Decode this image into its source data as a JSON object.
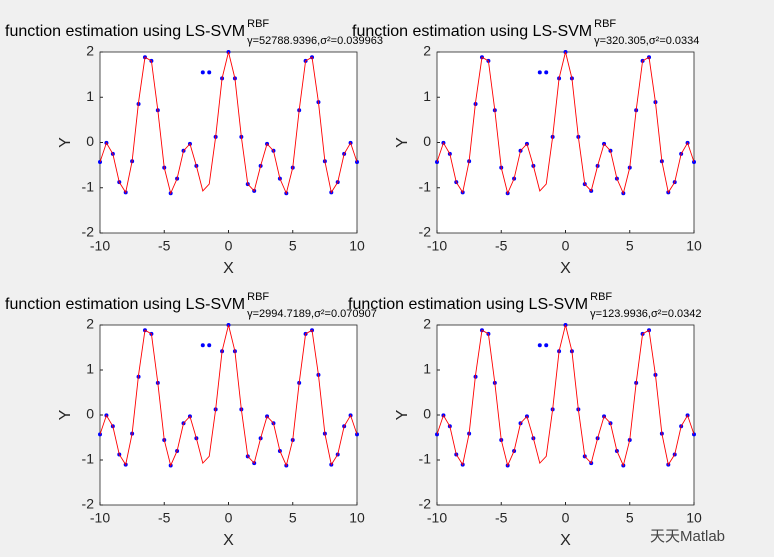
{
  "chart_data": [
    {
      "type": "scatter-line",
      "title": "function estimation using  LS-SVM",
      "title_sup": "RBF",
      "title_sub": "γ=52788.9396,σ²=0.039963",
      "xlabel": "X",
      "ylabel": "Y",
      "x": [
        -10,
        -9.5,
        -9,
        -8.5,
        -8,
        -7.5,
        -7,
        -6.5,
        -6,
        -5.5,
        -5,
        -4.5,
        -4,
        -3.5,
        -3,
        -2.5,
        -2,
        -1.5,
        -1,
        -0.5,
        0,
        0.5,
        1,
        1.5,
        2,
        2.5,
        3,
        3.5,
        4,
        4.5,
        5,
        5.5,
        6,
        6.5,
        7,
        7.5,
        8,
        8.5,
        9,
        9.5,
        10
      ],
      "series": [
        {
          "color": "#0000ff",
          "marker": "dot",
          "values": [
            -0.431,
            -0.009,
            -0.251,
            -0.877,
            -1.103,
            -0.413,
            0.85,
            1.884,
            1.804,
            0.713,
            -0.555,
            -1.122,
            -0.799,
            -0.183,
            -0.03,
            -0.517,
            1.55,
            1.55,
            0.124,
            1.418,
            2,
            1.418,
            0.124,
            -0.919,
            -1.07,
            -0.517,
            -0.03,
            -0.183,
            -0.799,
            -1.122,
            -0.555,
            0.713,
            1.804,
            1.884,
            0.891,
            -0.413,
            -1.103,
            -0.877,
            -0.251,
            -0.009,
            -0.431
          ]
        },
        {
          "color": "#ff0000",
          "marker": "line",
          "values": [
            -0.431,
            -0.009,
            -0.251,
            -0.877,
            -1.103,
            -0.413,
            0.891,
            1.884,
            1.804,
            0.713,
            -0.555,
            -1.122,
            -0.799,
            -0.183,
            -0.03,
            -0.517,
            -1.07,
            -0.919,
            0.124,
            1.418,
            2,
            1.418,
            0.124,
            -0.919,
            -1.07,
            -0.517,
            -0.03,
            -0.183,
            -0.799,
            -1.122,
            -0.555,
            0.713,
            1.804,
            1.884,
            0.891,
            -0.413,
            -1.103,
            -0.877,
            -0.251,
            -0.009,
            -0.431
          ]
        }
      ],
      "xlim": [
        -10,
        10
      ],
      "xticks": [
        -10,
        -5,
        0,
        5,
        10
      ],
      "ylim": [
        -2,
        2
      ],
      "yticks": [
        -2,
        -1,
        0,
        1,
        2
      ]
    },
    {
      "type": "scatter-line",
      "title": "function estimation using  LS-SVM",
      "title_sup": "RBF",
      "title_sub": "γ=320.305,σ²=0.0334",
      "xlabel": "X",
      "ylabel": "Y",
      "x": [
        -10,
        -9.5,
        -9,
        -8.5,
        -8,
        -7.5,
        -7,
        -6.5,
        -6,
        -5.5,
        -5,
        -4.5,
        -4,
        -3.5,
        -3,
        -2.5,
        -2,
        -1.5,
        -1,
        -0.5,
        0,
        0.5,
        1,
        1.5,
        2,
        2.5,
        3,
        3.5,
        4,
        4.5,
        5,
        5.5,
        6,
        6.5,
        7,
        7.5,
        8,
        8.5,
        9,
        9.5,
        10
      ],
      "series": [
        {
          "color": "#0000ff",
          "marker": "dot",
          "values": [
            -0.431,
            -0.009,
            -0.251,
            -0.877,
            -1.103,
            -0.413,
            0.85,
            1.884,
            1.804,
            0.713,
            -0.555,
            -1.122,
            -0.799,
            -0.183,
            -0.03,
            -0.517,
            1.55,
            1.55,
            0.124,
            1.418,
            2,
            1.418,
            0.124,
            -0.919,
            -1.07,
            -0.517,
            -0.03,
            -0.183,
            -0.799,
            -1.122,
            -0.555,
            0.713,
            1.804,
            1.884,
            0.891,
            -0.413,
            -1.103,
            -0.877,
            -0.251,
            -0.009,
            -0.431
          ]
        },
        {
          "color": "#ff0000",
          "marker": "line",
          "values": [
            -0.431,
            -0.009,
            -0.251,
            -0.877,
            -1.103,
            -0.413,
            0.891,
            1.884,
            1.804,
            0.713,
            -0.555,
            -1.122,
            -0.799,
            -0.183,
            -0.03,
            -0.517,
            -1.07,
            -0.919,
            0.124,
            1.418,
            2,
            1.418,
            0.124,
            -0.919,
            -1.07,
            -0.517,
            -0.03,
            -0.183,
            -0.799,
            -1.122,
            -0.555,
            0.713,
            1.804,
            1.884,
            0.891,
            -0.413,
            -1.103,
            -0.877,
            -0.251,
            -0.009,
            -0.431
          ]
        }
      ],
      "xlim": [
        -10,
        10
      ],
      "xticks": [
        -10,
        -5,
        0,
        5,
        10
      ],
      "ylim": [
        -2,
        2
      ],
      "yticks": [
        -2,
        -1,
        0,
        1,
        2
      ]
    },
    {
      "type": "scatter-line",
      "title": "function estimation using  LS-SVM",
      "title_sup": "RBF",
      "title_sub": "γ=2994.7189,σ²=0.070907",
      "xlabel": "X",
      "ylabel": "Y",
      "x": [
        -10,
        -9.5,
        -9,
        -8.5,
        -8,
        -7.5,
        -7,
        -6.5,
        -6,
        -5.5,
        -5,
        -4.5,
        -4,
        -3.5,
        -3,
        -2.5,
        -2,
        -1.5,
        -1,
        -0.5,
        0,
        0.5,
        1,
        1.5,
        2,
        2.5,
        3,
        3.5,
        4,
        4.5,
        5,
        5.5,
        6,
        6.5,
        7,
        7.5,
        8,
        8.5,
        9,
        9.5,
        10
      ],
      "series": [
        {
          "color": "#0000ff",
          "marker": "dot",
          "values": [
            -0.431,
            -0.009,
            -0.251,
            -0.877,
            -1.103,
            -0.413,
            0.85,
            1.884,
            1.804,
            0.713,
            -0.555,
            -1.122,
            -0.799,
            -0.183,
            -0.03,
            -0.517,
            1.55,
            1.55,
            0.124,
            1.418,
            2,
            1.418,
            0.124,
            -0.919,
            -1.07,
            -0.517,
            -0.03,
            -0.183,
            -0.799,
            -1.122,
            -0.555,
            0.713,
            1.804,
            1.884,
            0.891,
            -0.413,
            -1.103,
            -0.877,
            -0.251,
            -0.009,
            -0.431
          ]
        },
        {
          "color": "#ff0000",
          "marker": "line",
          "values": [
            -0.431,
            -0.009,
            -0.251,
            -0.877,
            -1.103,
            -0.413,
            0.891,
            1.884,
            1.804,
            0.713,
            -0.555,
            -1.122,
            -0.799,
            -0.183,
            -0.03,
            -0.517,
            -1.07,
            -0.919,
            0.124,
            1.418,
            2,
            1.418,
            0.124,
            -0.919,
            -1.07,
            -0.517,
            -0.03,
            -0.183,
            -0.799,
            -1.122,
            -0.555,
            0.713,
            1.804,
            1.884,
            0.891,
            -0.413,
            -1.103,
            -0.877,
            -0.251,
            -0.009,
            -0.431
          ]
        }
      ],
      "xlim": [
        -10,
        10
      ],
      "xticks": [
        -10,
        -5,
        0,
        5,
        10
      ],
      "ylim": [
        -2,
        2
      ],
      "yticks": [
        -2,
        -1,
        0,
        1,
        2
      ]
    },
    {
      "type": "scatter-line",
      "title": "function estimation using  LS-SVM",
      "title_sup": "RBF",
      "title_sub": "γ=123.9936,σ²=0.0342",
      "xlabel": "X",
      "ylabel": "Y",
      "x": [
        -10,
        -9.5,
        -9,
        -8.5,
        -8,
        -7.5,
        -7,
        -6.5,
        -6,
        -5.5,
        -5,
        -4.5,
        -4,
        -3.5,
        -3,
        -2.5,
        -2,
        -1.5,
        -1,
        -0.5,
        0,
        0.5,
        1,
        1.5,
        2,
        2.5,
        3,
        3.5,
        4,
        4.5,
        5,
        5.5,
        6,
        6.5,
        7,
        7.5,
        8,
        8.5,
        9,
        9.5,
        10
      ],
      "series": [
        {
          "color": "#0000ff",
          "marker": "dot",
          "values": [
            -0.431,
            -0.009,
            -0.251,
            -0.877,
            -1.103,
            -0.413,
            0.85,
            1.884,
            1.804,
            0.713,
            -0.555,
            -1.122,
            -0.799,
            -0.183,
            -0.03,
            -0.517,
            1.55,
            1.55,
            0.124,
            1.418,
            2,
            1.418,
            0.124,
            -0.919,
            -1.07,
            -0.517,
            -0.03,
            -0.183,
            -0.799,
            -1.122,
            -0.555,
            0.713,
            1.804,
            1.884,
            0.891,
            -0.413,
            -1.103,
            -0.877,
            -0.251,
            -0.009,
            -0.431
          ]
        },
        {
          "color": "#ff0000",
          "marker": "line",
          "values": [
            -0.431,
            -0.009,
            -0.251,
            -0.877,
            -1.103,
            -0.413,
            0.891,
            1.884,
            1.804,
            0.713,
            -0.555,
            -1.122,
            -0.799,
            -0.183,
            -0.03,
            -0.517,
            -1.07,
            -0.919,
            0.124,
            1.418,
            2,
            1.418,
            0.124,
            -0.919,
            -1.07,
            -0.517,
            -0.03,
            -0.183,
            -0.799,
            -1.122,
            -0.555,
            0.713,
            1.804,
            1.884,
            0.891,
            -0.413,
            -1.103,
            -0.877,
            -0.251,
            -0.009,
            -0.431
          ]
        }
      ],
      "xlim": [
        -10,
        10
      ],
      "xticks": [
        -10,
        -5,
        0,
        5,
        10
      ],
      "ylim": [
        -2,
        2
      ],
      "yticks": [
        -2,
        -1,
        0,
        1,
        2
      ]
    }
  ],
  "watermark": "天天Matlab"
}
